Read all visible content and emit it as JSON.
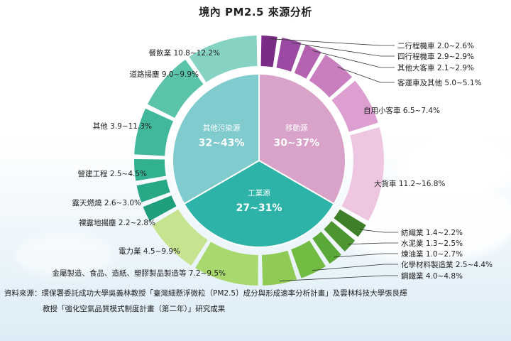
{
  "title": "境內 PM2.5 來源分析",
  "source_line1": "資料來源：環保署委託成功大學吳義林教授「臺灣細懸浮微粒（PM2.5）成分與形成速率分析計畫」及雲林科技大學張艮輝",
  "source_line2": "教授「強化空氣品質模式制度計畫（第二年）」研究成果",
  "chart_data": {
    "type": "pie",
    "groups": [
      {
        "label": "移動源",
        "range": "30~37%",
        "color": "#d9a2c9"
      },
      {
        "label": "工業源",
        "range": "27~31%",
        "color": "#2eb3a9"
      },
      {
        "label": "其他污染源",
        "range": "32~43%",
        "color": "#7fcbcd"
      }
    ],
    "segments": [
      {
        "name": "二行程機車",
        "range": "2.0~2.6%",
        "low": 2.0,
        "high": 2.6,
        "group": "移動源",
        "color": "#7a2b85"
      },
      {
        "name": "四行程機車",
        "range": "2.9~2.9%",
        "low": 2.9,
        "high": 2.9,
        "group": "移動源",
        "color": "#9b4aa3"
      },
      {
        "name": "其他大客車",
        "range": "2.1~2.9%",
        "low": 2.1,
        "high": 2.9,
        "group": "移動源",
        "color": "#b461b0"
      },
      {
        "name": "客運車及其他",
        "range": "5.0~5.1%",
        "low": 5.0,
        "high": 5.1,
        "group": "移動源",
        "color": "#c97ebf"
      },
      {
        "name": "自用小客車",
        "range": "6.5~7.4%",
        "low": 6.5,
        "high": 7.4,
        "group": "移動源",
        "color": "#dc9fcf"
      },
      {
        "name": "大貨車",
        "range": "11.2~16.8%",
        "low": 11.2,
        "high": 16.8,
        "group": "移動源",
        "color": "#efc6e2"
      },
      {
        "name": "紡織業",
        "range": "1.4~2.2%",
        "low": 1.4,
        "high": 2.2,
        "group": "工業源",
        "color": "#3e7f2a"
      },
      {
        "name": "水泥業",
        "range": "1.3~2.5%",
        "low": 1.3,
        "high": 2.5,
        "group": "工業源",
        "color": "#4c9530"
      },
      {
        "name": "煉油業",
        "range": "1.0~2.7%",
        "low": 1.0,
        "high": 2.7,
        "group": "工業源",
        "color": "#5aa838"
      },
      {
        "name": "化學材料製造業",
        "range": "2.5~4.4%",
        "low": 2.5,
        "high": 4.4,
        "group": "工業源",
        "color": "#73bc44"
      },
      {
        "name": "鋼鐵業",
        "range": "4.0~4.8%",
        "low": 4.0,
        "high": 4.8,
        "group": "工業源",
        "color": "#90cc55"
      },
      {
        "name": "金屬製造、食品、造紙、塑膠製品製造等",
        "range": "7.2~9.5%",
        "low": 7.2,
        "high": 9.5,
        "group": "工業源",
        "color": "#a9d86e"
      },
      {
        "name": "電力業",
        "range": "4.5~9.9%",
        "low": 4.5,
        "high": 9.9,
        "group": "工業源",
        "color": "#c6e48f"
      },
      {
        "name": "裸露地揚塵",
        "range": "2.2~2.8%",
        "low": 2.2,
        "high": 2.8,
        "group": "其他污染源",
        "color": "#1f9e7e"
      },
      {
        "name": "露天燃燒",
        "range": "2.6~3.0%",
        "low": 2.6,
        "high": 3.0,
        "group": "其他污染源",
        "color": "#27a887"
      },
      {
        "name": "營建工程",
        "range": "2.5~4.5%",
        "low": 2.5,
        "high": 4.5,
        "group": "其他污染源",
        "color": "#32b191"
      },
      {
        "name": "其他",
        "range": "3.9~11.3%",
        "low": 3.9,
        "high": 11.3,
        "group": "其他污染源",
        "color": "#40b89b"
      },
      {
        "name": "道路揚塵",
        "range": "9.0~9.9%",
        "low": 9.0,
        "high": 9.9,
        "group": "其他污染源",
        "color": "#5cc3ab"
      },
      {
        "name": "餐飲業",
        "range": "10.8~12.2%",
        "low": 10.8,
        "high": 12.2,
        "group": "其他污染源",
        "color": "#86d3c4"
      }
    ]
  }
}
